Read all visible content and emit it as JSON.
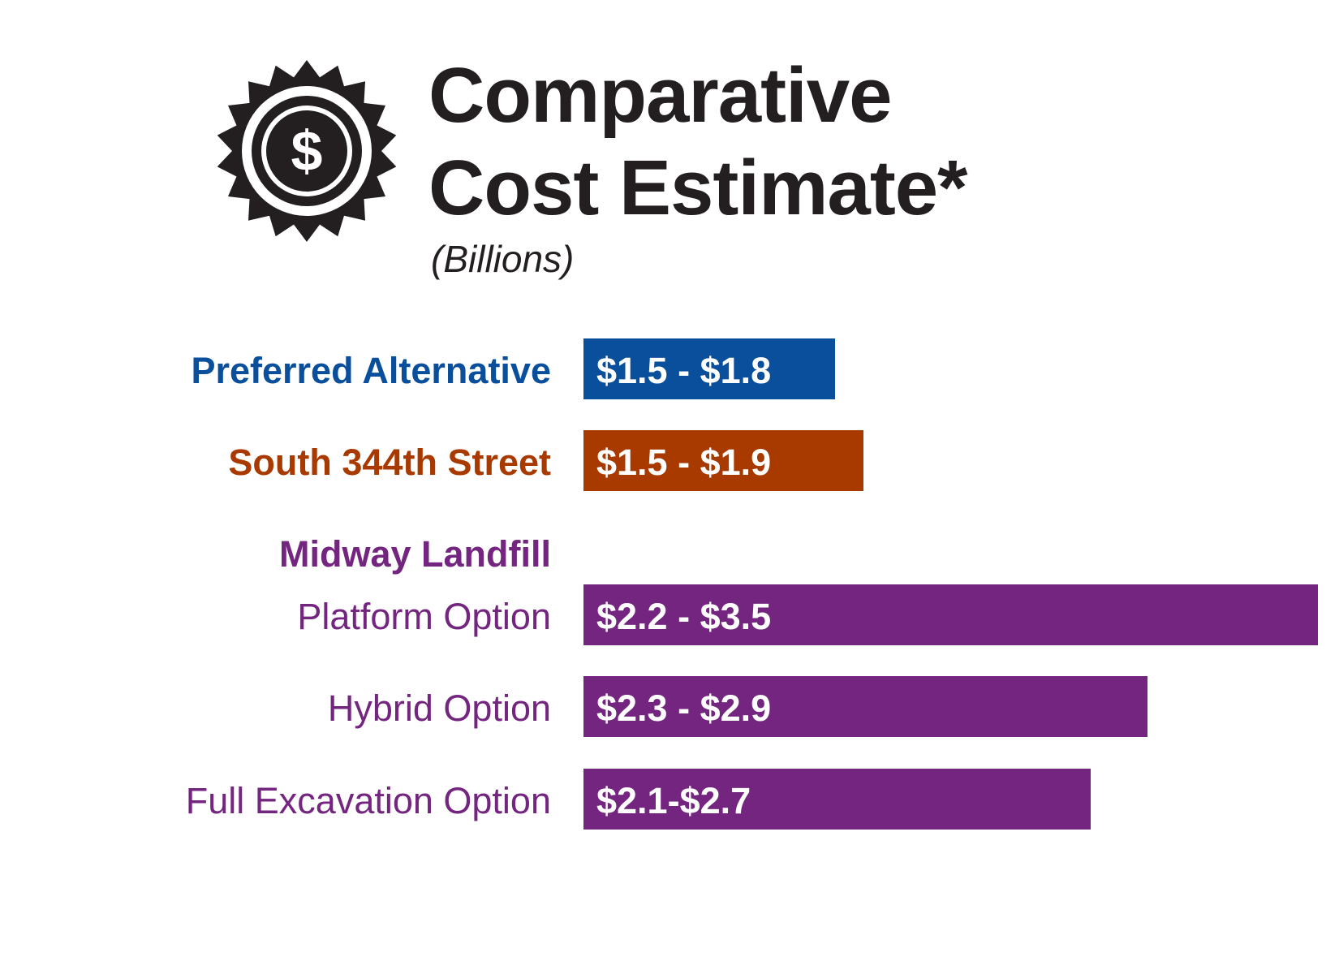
{
  "chart_data": {
    "type": "bar",
    "orientation": "horizontal",
    "title": [
      "Comparative",
      "Cost Estimate*"
    ],
    "subtitle": "(Billions)",
    "group_heading": "Midway Landfill",
    "rows": [
      {
        "label": "Preferred Alternative",
        "label_weight": "bold",
        "min": 1.5,
        "max": 1.8,
        "value_label": "$1.5 - $1.8",
        "color": "#0a4f9c"
      },
      {
        "label": "South 344th Street",
        "label_weight": "bold",
        "min": 1.5,
        "max": 1.9,
        "value_label": "$1.5 - $1.9",
        "color": "#a83a00"
      },
      {
        "label": "Platform Option",
        "label_weight": "normal",
        "min": 2.2,
        "max": 3.5,
        "value_label": "$2.2 - $3.5",
        "color": "#742580"
      },
      {
        "label": "Hybrid Option",
        "label_weight": "normal",
        "min": 2.3,
        "max": 2.9,
        "value_label": "$2.3 - $2.9",
        "color": "#742580"
      },
      {
        "label": "Full Excavation Option",
        "label_weight": "normal",
        "min": 2.1,
        "max": 2.7,
        "value_label": "$2.1-$2.7",
        "color": "#742580"
      }
    ],
    "heading_color": "#742580",
    "grid": false,
    "legend": "none"
  },
  "icons": {
    "badge": "dollar-badge-icon"
  },
  "colors": {
    "title": "#231f20",
    "bar_text": "#ffffff"
  }
}
